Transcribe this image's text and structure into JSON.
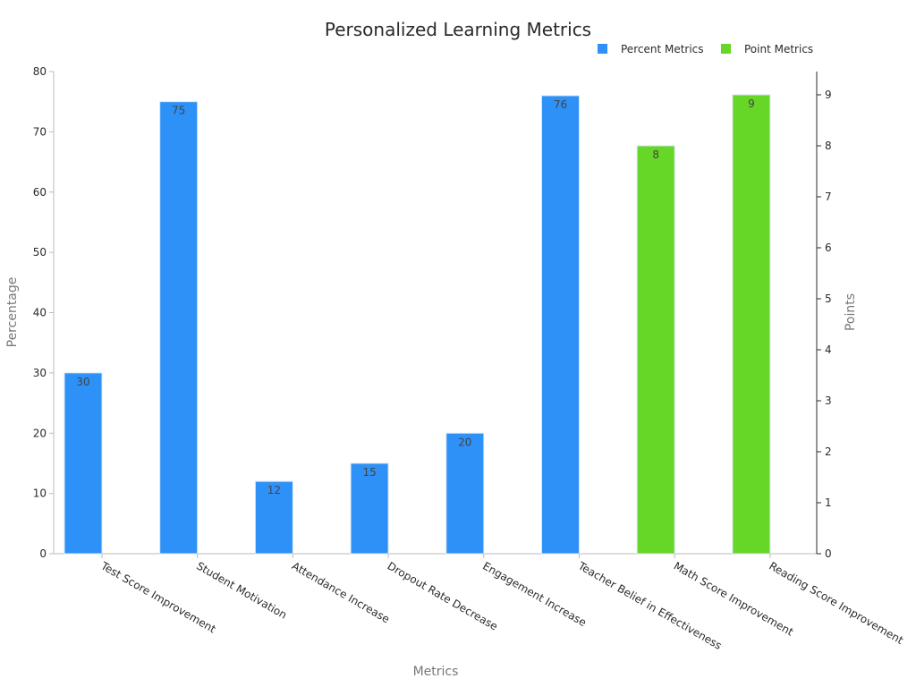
{
  "chart_data": {
    "type": "bar",
    "title": "Personalized Learning Metrics",
    "xlabel": "Metrics",
    "ylabel": "Percentage",
    "y2label": "Points",
    "categories": [
      "Test Score Improvement",
      "Student Motivation",
      "Attendance Increase",
      "Dropout Rate Decrease",
      "Engagement Increase",
      "Teacher Belief in Effectiveness",
      "Math Score Improvement",
      "Reading Score Improvement"
    ],
    "series": [
      {
        "name": "Percent Metrics",
        "axis": "left",
        "color": "#2d91f7",
        "values": [
          30,
          75,
          12,
          15,
          20,
          76,
          null,
          null
        ]
      },
      {
        "name": "Point Metrics",
        "axis": "right",
        "color": "#66d627",
        "values": [
          null,
          null,
          null,
          null,
          null,
          null,
          8,
          9
        ]
      }
    ],
    "ylim": [
      0,
      80
    ],
    "y2lim": [
      0,
      9.5
    ],
    "yticks": [
      0,
      10,
      20,
      30,
      40,
      50,
      60,
      70,
      80
    ],
    "y2ticks": [
      0,
      1,
      2,
      3,
      4,
      5,
      6,
      7,
      8,
      9
    ],
    "legend_position": "top-right",
    "grid": false
  }
}
